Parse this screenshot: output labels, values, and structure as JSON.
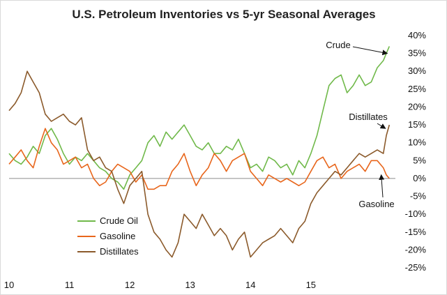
{
  "chart_data": {
    "type": "line",
    "title": "U.S. Petroleum Inventories vs 5-yr Seasonal Averages",
    "xlabel": "",
    "ylabel": "",
    "x_tick_labels": [
      "10",
      "11",
      "12",
      "13",
      "14",
      "15"
    ],
    "x_range": [
      2010,
      2016.4
    ],
    "ylim": [
      -25,
      40
    ],
    "y_tick_values": [
      -25,
      -20,
      -15,
      -10,
      -5,
      0,
      5,
      10,
      15,
      20,
      25,
      30,
      35,
      40
    ],
    "y_tick_labels": [
      "-25%",
      "-20%",
      "-15%",
      "-10%",
      "-5%",
      "0%",
      "5%",
      "10%",
      "15%",
      "20%",
      "25%",
      "30%",
      "35%",
      "40%"
    ],
    "grid": false,
    "zero_line": true,
    "legend_position": "bottom-left",
    "series": [
      {
        "name": "Crude Oil",
        "color": "#70b94a",
        "x": [
          2010.0,
          2010.1,
          2010.2,
          2010.3,
          2010.4,
          2010.5,
          2010.6,
          2010.7,
          2010.8,
          2010.9,
          2011.0,
          2011.1,
          2011.2,
          2011.3,
          2011.4,
          2011.5,
          2011.6,
          2011.7,
          2011.8,
          2011.9,
          2012.0,
          2012.1,
          2012.2,
          2012.3,
          2012.4,
          2012.5,
          2012.6,
          2012.7,
          2012.8,
          2012.9,
          2013.0,
          2013.1,
          2013.2,
          2013.3,
          2013.4,
          2013.5,
          2013.6,
          2013.7,
          2013.8,
          2013.9,
          2014.0,
          2014.1,
          2014.2,
          2014.3,
          2014.4,
          2014.5,
          2014.6,
          2014.7,
          2014.8,
          2014.9,
          2015.0,
          2015.1,
          2015.2,
          2015.3,
          2015.4,
          2015.5,
          2015.6,
          2015.7,
          2015.8,
          2015.9,
          2016.0,
          2016.1,
          2016.2,
          2016.25,
          2016.3
        ],
        "values": [
          7,
          5,
          4,
          6,
          9,
          7,
          12,
          14,
          11,
          7,
          4,
          6,
          5,
          7,
          5,
          3,
          2,
          0,
          -1,
          -3,
          1,
          3,
          5,
          10,
          12,
          9,
          13,
          11,
          13,
          15,
          12,
          9,
          8,
          10,
          7,
          7,
          9,
          8,
          11,
          7,
          3,
          4,
          2,
          6,
          5,
          3,
          4,
          1,
          5,
          3,
          7,
          12,
          19,
          26,
          28,
          29,
          24,
          26,
          29,
          26,
          27,
          31,
          33,
          35,
          37
        ]
      },
      {
        "name": "Gasoline",
        "color": "#e8661c",
        "x": [
          2010.0,
          2010.1,
          2010.2,
          2010.3,
          2010.4,
          2010.5,
          2010.6,
          2010.7,
          2010.8,
          2010.9,
          2011.0,
          2011.1,
          2011.2,
          2011.3,
          2011.4,
          2011.5,
          2011.6,
          2011.7,
          2011.8,
          2011.9,
          2012.0,
          2012.1,
          2012.2,
          2012.3,
          2012.4,
          2012.5,
          2012.6,
          2012.7,
          2012.8,
          2012.9,
          2013.0,
          2013.1,
          2013.2,
          2013.3,
          2013.4,
          2013.5,
          2013.6,
          2013.7,
          2013.8,
          2013.9,
          2014.0,
          2014.1,
          2014.2,
          2014.3,
          2014.4,
          2014.5,
          2014.6,
          2014.7,
          2014.8,
          2014.9,
          2015.0,
          2015.1,
          2015.2,
          2015.3,
          2015.4,
          2015.5,
          2015.6,
          2015.7,
          2015.8,
          2015.9,
          2016.0,
          2016.1,
          2016.2,
          2016.25,
          2016.3
        ],
        "values": [
          4,
          6,
          8,
          5,
          3,
          9,
          14,
          10,
          8,
          4,
          5,
          6,
          3,
          4,
          0,
          -2,
          -1,
          2,
          4,
          3,
          2,
          -1,
          1,
          -3,
          -3,
          -2,
          -2,
          2,
          4,
          7,
          2,
          -2,
          1,
          3,
          7,
          5,
          2,
          5,
          6,
          7,
          2,
          0,
          -2,
          1,
          0,
          -1,
          0,
          -1,
          -2,
          -1,
          2,
          5,
          6,
          3,
          4,
          0,
          2,
          3,
          4,
          2,
          5,
          5,
          3,
          1,
          0
        ]
      },
      {
        "name": "Distillates",
        "color": "#8b5a2b",
        "x": [
          2010.0,
          2010.1,
          2010.2,
          2010.3,
          2010.4,
          2010.5,
          2010.6,
          2010.7,
          2010.8,
          2010.9,
          2011.0,
          2011.1,
          2011.2,
          2011.3,
          2011.4,
          2011.5,
          2011.6,
          2011.7,
          2011.8,
          2011.9,
          2012.0,
          2012.1,
          2012.2,
          2012.3,
          2012.4,
          2012.5,
          2012.6,
          2012.7,
          2012.8,
          2012.9,
          2013.0,
          2013.1,
          2013.2,
          2013.3,
          2013.4,
          2013.5,
          2013.6,
          2013.7,
          2013.8,
          2013.9,
          2014.0,
          2014.1,
          2014.2,
          2014.3,
          2014.4,
          2014.5,
          2014.6,
          2014.7,
          2014.8,
          2014.9,
          2015.0,
          2015.1,
          2015.2,
          2015.3,
          2015.4,
          2015.5,
          2015.6,
          2015.7,
          2015.8,
          2015.9,
          2016.0,
          2016.1,
          2016.2,
          2016.25,
          2016.3
        ],
        "values": [
          19,
          21,
          24,
          30,
          27,
          24,
          18,
          16,
          17,
          18,
          16,
          15,
          17,
          8,
          5,
          6,
          3,
          2,
          -3,
          -7,
          -2,
          0,
          2,
          -10,
          -15,
          -17,
          -20,
          -22,
          -18,
          -10,
          -12,
          -14,
          -10,
          -13,
          -16,
          -14,
          -16,
          -20,
          -17,
          -15,
          -22,
          -20,
          -18,
          -17,
          -16,
          -14,
          -16,
          -18,
          -14,
          -12,
          -7,
          -4,
          -2,
          0,
          2,
          1,
          3,
          5,
          7,
          6,
          7,
          8,
          7,
          12,
          15
        ]
      }
    ],
    "annotations": [
      {
        "text": "Crude",
        "points_to": [
          2016.3,
          35
        ]
      },
      {
        "text": "Distillates",
        "points_to": [
          2016.27,
          14
        ]
      },
      {
        "text": "Gasoline",
        "points_to": [
          2016.2,
          1
        ]
      }
    ]
  }
}
